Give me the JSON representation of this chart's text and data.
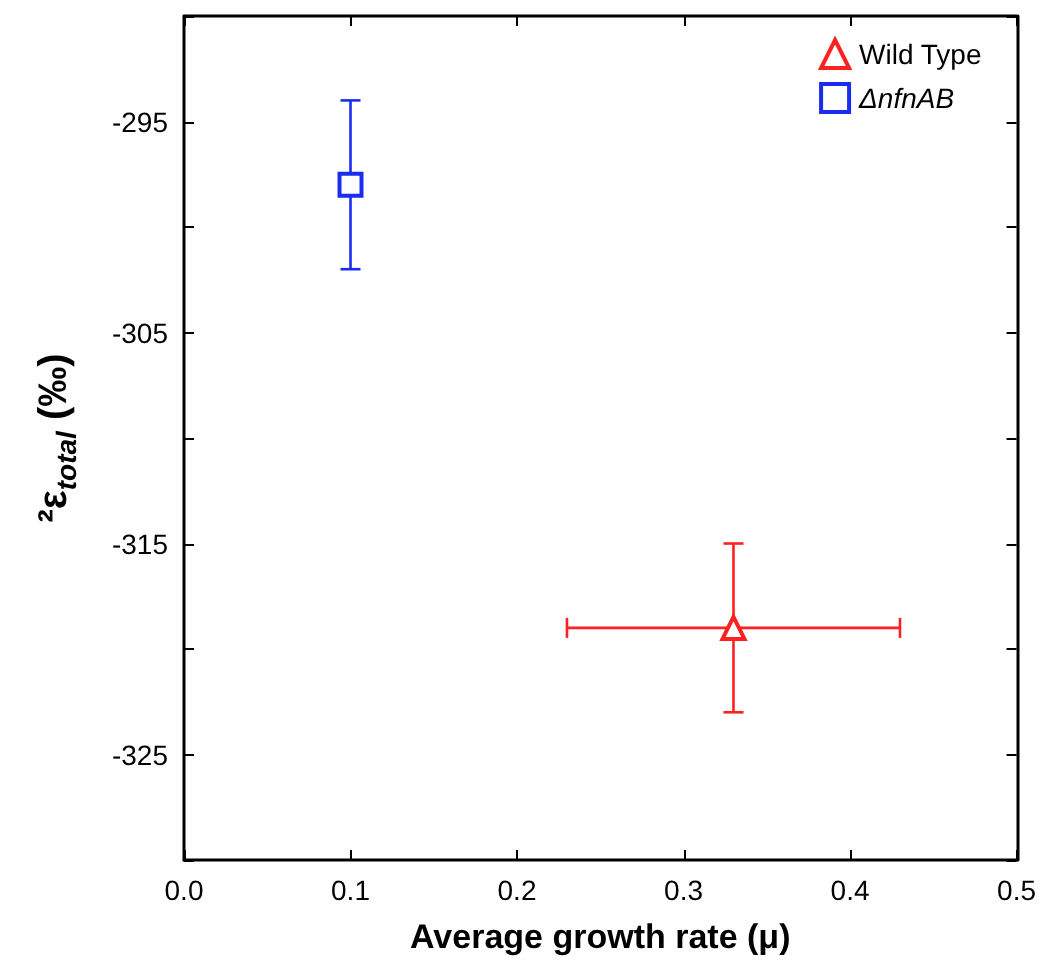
{
  "chart_data": {
    "type": "scatter",
    "xlabel": "Average growth rate (μ)",
    "ylabel": "²ε$_{total}$ (‰)",
    "xlim": [
      0,
      0.5
    ],
    "xticks": [
      {
        "value": 0,
        "label": "0.0"
      },
      0.1,
      0.2,
      0.3,
      0.4,
      0.5
    ],
    "ylim": [
      -330,
      -290
    ],
    "yticks": [
      {
        "value": -330,
        "label": null
      },
      -325,
      {
        "value": -320,
        "label": null
      },
      -315,
      {
        "value": -310,
        "label": null
      },
      -305,
      {
        "value": -300,
        "label": null
      },
      -295,
      {
        "value": -290,
        "label": null
      }
    ],
    "grid": false,
    "legend": "top right",
    "series": [
      {
        "name": "Wild Type",
        "color": "#ff2020",
        "marker": "triangle",
        "x": [
          0.33
        ],
        "values": [
          -319
        ],
        "errors": [
          4
        ],
        "xerrors": [
          0.1
        ]
      },
      {
        "name": "ΔnfnAB",
        "color": "#1a2cf0",
        "marker": "square",
        "x": [
          0.1
        ],
        "values": [
          -298
        ],
        "errors": [
          4
        ],
        "xerrors": [
          0.005
        ]
      }
    ]
  }
}
